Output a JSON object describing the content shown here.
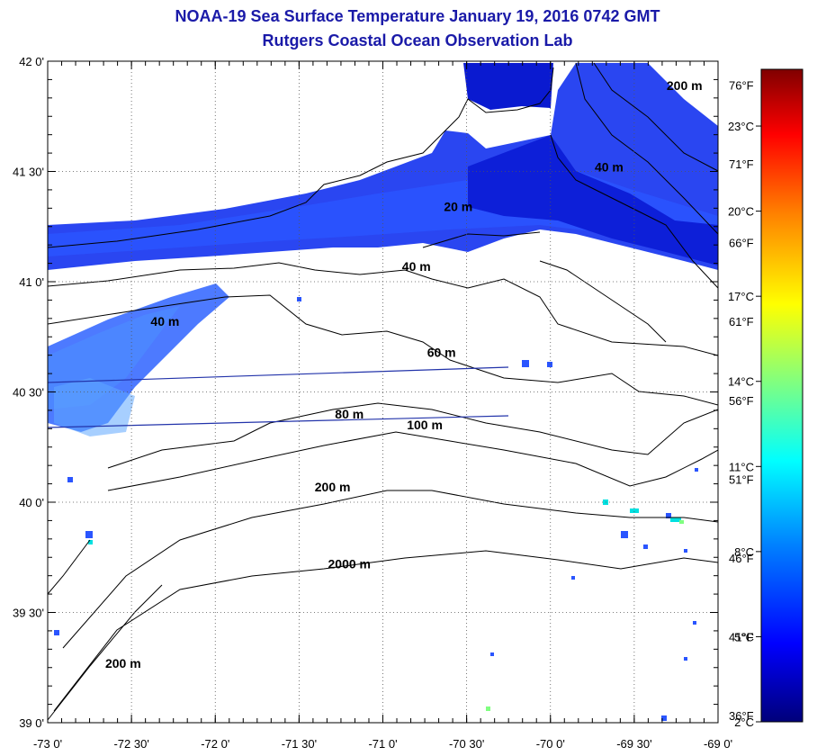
{
  "header": {
    "title": "NOAA-19 Sea Surface Temperature January 19, 2016 0742 GMT",
    "subtitle": "Rutgers Coastal Ocean Observation Lab"
  },
  "map": {
    "lon_range": [
      -73,
      -69
    ],
    "lat_range": [
      39,
      42
    ],
    "lon_ticks": [
      {
        "value": -73.0,
        "label": "-73 0'"
      },
      {
        "value": -72.5,
        "label": "-72 30'"
      },
      {
        "value": -72.0,
        "label": "-72 0'"
      },
      {
        "value": -71.5,
        "label": "-71 30'"
      },
      {
        "value": -71.0,
        "label": "-71 0'"
      },
      {
        "value": -70.5,
        "label": "-70 30'"
      },
      {
        "value": -70.0,
        "label": "-70 0'"
      },
      {
        "value": -69.5,
        "label": "-69 30'"
      },
      {
        "value": -69.0,
        "label": "-69 0'"
      }
    ],
    "lat_ticks": [
      {
        "value": 42.0,
        "label": "42 0'"
      },
      {
        "value": 41.5,
        "label": "41 30'"
      },
      {
        "value": 41.0,
        "label": "41 0'"
      },
      {
        "value": 40.5,
        "label": "40 30'"
      },
      {
        "value": 40.0,
        "label": "40 0'"
      },
      {
        "value": 39.5,
        "label": "39 30'"
      },
      {
        "value": 39.0,
        "label": "39 0'"
      }
    ],
    "fahrenheit_ticks": [
      {
        "value": 76,
        "label": "76°F"
      },
      {
        "value": 71,
        "label": "71°F"
      },
      {
        "value": 66,
        "label": "66°F"
      },
      {
        "value": 61,
        "label": "61°F"
      },
      {
        "value": 56,
        "label": "56°F"
      },
      {
        "value": 51,
        "label": "51°F"
      },
      {
        "value": 46,
        "label": "46°F"
      },
      {
        "value": 41,
        "label": "41°F"
      },
      {
        "value": 36,
        "label": "36°F"
      }
    ],
    "grid": true,
    "contour_labels": [
      {
        "text": "200 m",
        "lon": -69.2,
        "lat": 41.87
      },
      {
        "text": "40 m",
        "lon": -69.65,
        "lat": 41.5
      },
      {
        "text": "20 m",
        "lon": -70.55,
        "lat": 41.32
      },
      {
        "text": "40 m",
        "lon": -70.8,
        "lat": 41.05
      },
      {
        "text": "40 m",
        "lon": -72.3,
        "lat": 40.8
      },
      {
        "text": "60 m",
        "lon": -70.65,
        "lat": 40.66
      },
      {
        "text": "80 m",
        "lon": -71.2,
        "lat": 40.38
      },
      {
        "text": "100 m",
        "lon": -70.75,
        "lat": 40.33
      },
      {
        "text": "200 m",
        "lon": -71.3,
        "lat": 40.05
      },
      {
        "text": "2000 m",
        "lon": -71.2,
        "lat": 39.7
      },
      {
        "text": "200 m",
        "lon": -72.55,
        "lat": 39.25
      }
    ]
  },
  "colorbar": {
    "range_c": [
      2,
      25
    ],
    "ticks": [
      {
        "value": 23,
        "label": "23°C"
      },
      {
        "value": 20,
        "label": "20°C"
      },
      {
        "value": 17,
        "label": "17°C"
      },
      {
        "value": 14,
        "label": "14°C"
      },
      {
        "value": 11,
        "label": "11°C"
      },
      {
        "value": 8,
        "label": "8°C"
      },
      {
        "value": 5,
        "label": "5°C"
      },
      {
        "value": 2,
        "label": "2°C"
      }
    ],
    "stops": [
      "#00007a",
      "#0000ff",
      "#0080ff",
      "#00ffff",
      "#80ff80",
      "#ffff00",
      "#ff8000",
      "#ff0000",
      "#800000"
    ]
  },
  "colors": {
    "title": "#1a1aa8",
    "water_dark": "#1a1aff",
    "water_mid": "#3a6aff",
    "water_light": "#4aa0ff"
  }
}
